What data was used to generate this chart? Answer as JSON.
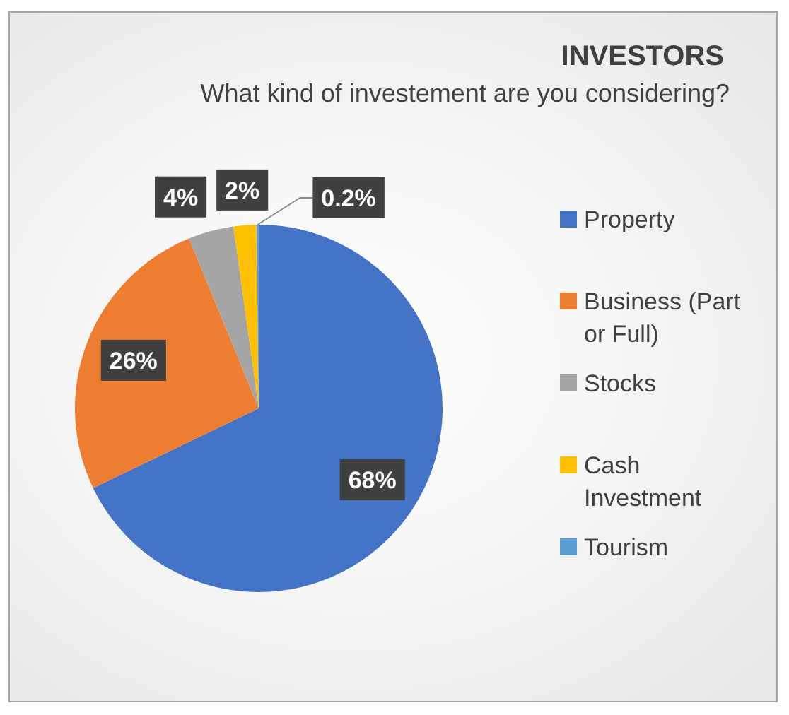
{
  "chart_data": {
    "type": "pie",
    "title": "INVESTORS",
    "subtitle": "What kind of investement are you considering?",
    "categories": [
      "Property",
      "Business (Part or Full)",
      "Stocks",
      "Cash Investment",
      "Tourism"
    ],
    "values": [
      68,
      26,
      4,
      2,
      0.2
    ],
    "colors": [
      "#4472c4",
      "#ed7d31",
      "#a5a5a5",
      "#ffc000",
      "#5b9bd5"
    ],
    "value_labels": [
      "68%",
      "26%",
      "4%",
      "2%",
      "0.2%"
    ],
    "legend": "right"
  }
}
